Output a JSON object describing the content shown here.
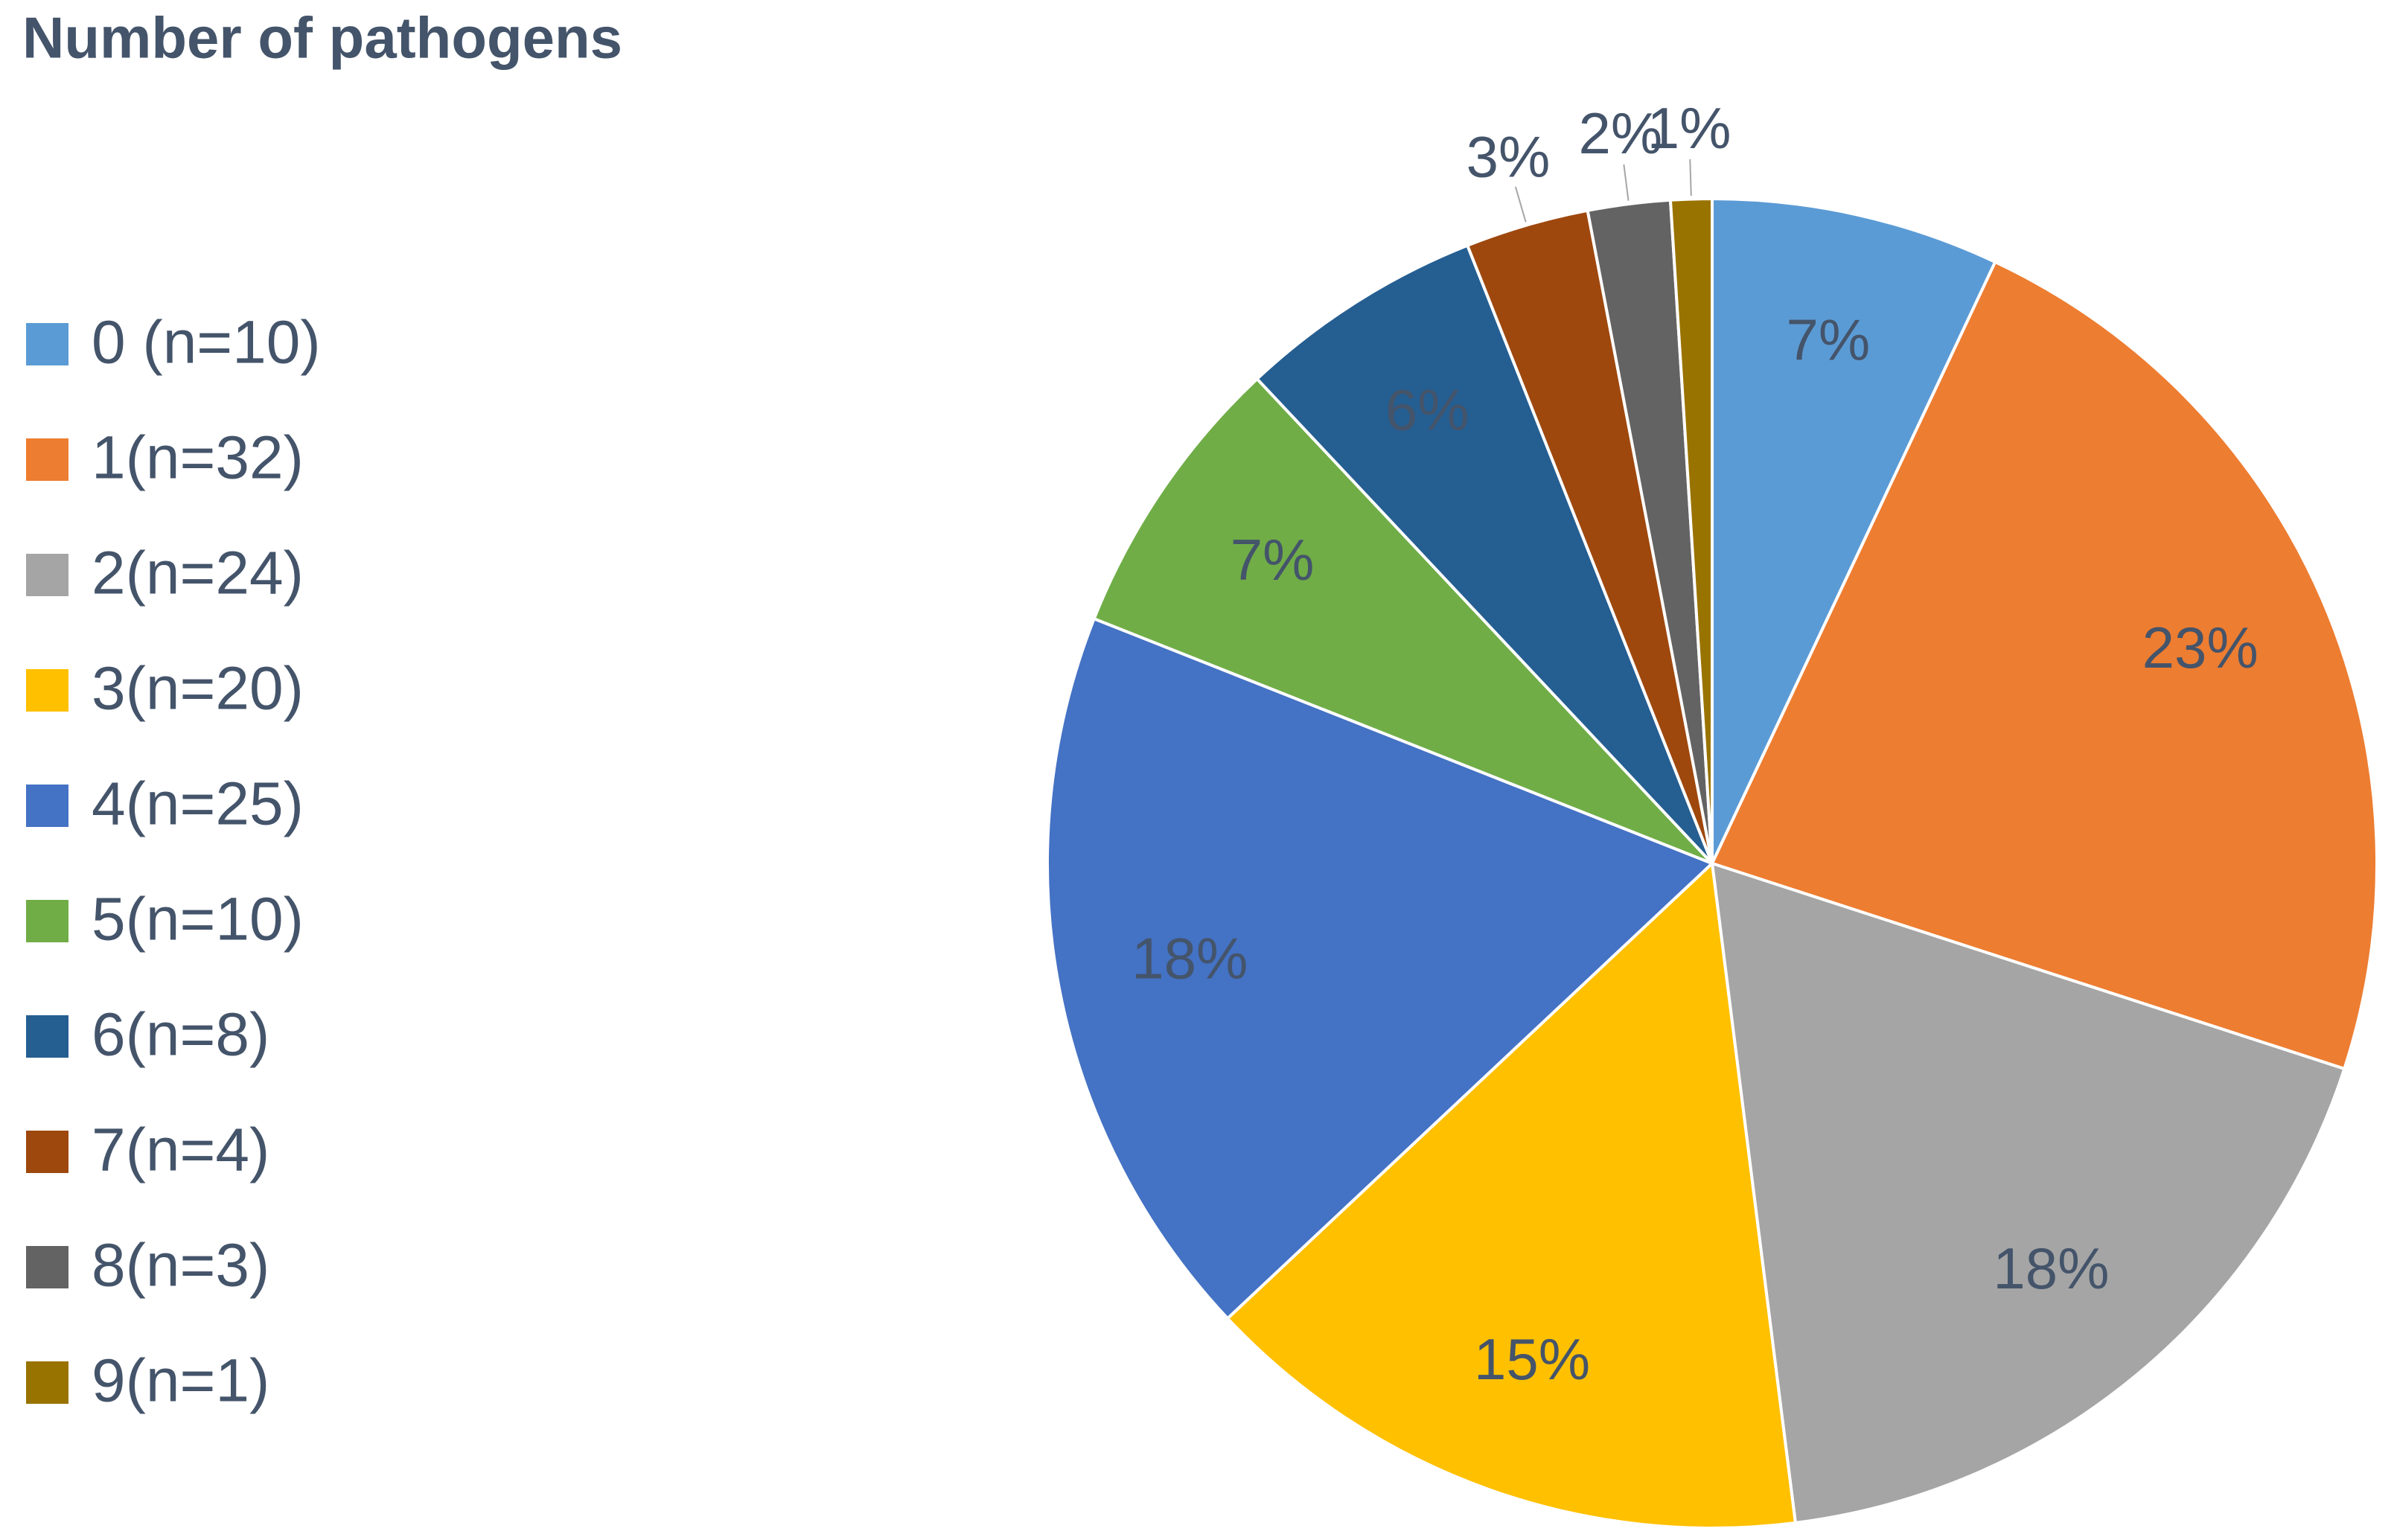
{
  "chart_data": {
    "type": "pie",
    "title": "Number of pathogens",
    "categories": [
      "0 (n=10)",
      "1(n=32)",
      "2(n=24)",
      "3(n=20)",
      "4(n=25)",
      "5(n=10)",
      "6(n=8)",
      "7(n=4)",
      "8(n=3)",
      "9(n=1)"
    ],
    "values": [
      7,
      23,
      18,
      15,
      18,
      7,
      6,
      3,
      2,
      1
    ],
    "value_labels": [
      "7%",
      "23%",
      "18%",
      "15%",
      "18%",
      "7%",
      "6%",
      "3%",
      "2%",
      "1%"
    ],
    "colors": [
      "#5b9bd5",
      "#ed7d31",
      "#a5a5a5",
      "#ffc000",
      "#4472c4",
      "#70ad47",
      "#255e91",
      "#9e480e",
      "#636363",
      "#997300"
    ],
    "legend": "left"
  }
}
